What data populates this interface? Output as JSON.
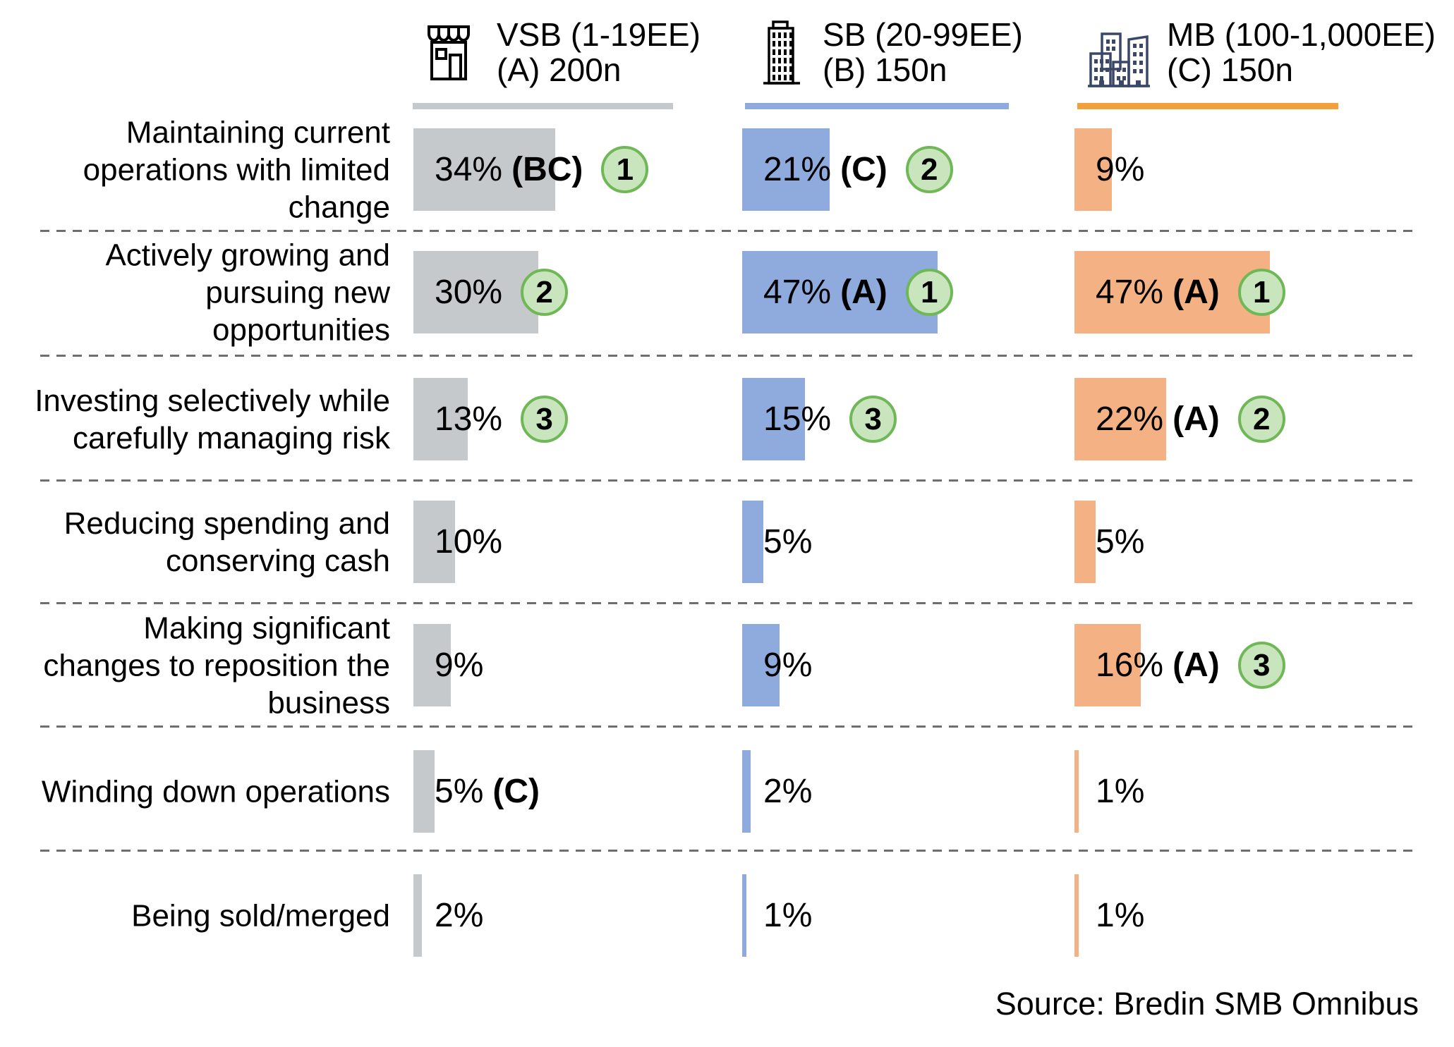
{
  "header": {
    "columns": [
      {
        "id": "A",
        "icon": "storefront-icon",
        "line1": "VSB (1-19EE)",
        "line2": "(A) 200n",
        "underline_color": "#C6C9CB",
        "bar_color": "#C6C9CB"
      },
      {
        "id": "B",
        "icon": "office-building-icon",
        "line1": "SB (20-99EE)",
        "line2": "(B) 150n",
        "underline_color": "#8FAADC",
        "bar_color": "#8FAADC"
      },
      {
        "id": "C",
        "icon": "city-buildings-icon",
        "line1": "MB (100-1,000EE)",
        "line2": "(C) 150n",
        "underline_color": "#F0A139",
        "bar_color": "#F4B183"
      }
    ]
  },
  "chart_data": {
    "type": "bar",
    "orientation": "horizontal",
    "value_unit": "percent",
    "series_names": [
      "VSB (1-19EE) (A) 200n",
      "SB (20-99EE) (B) 150n",
      "MB (100-1,000EE) (C) 150n"
    ],
    "categories": [
      "Maintaining current operations with limited change",
      "Actively growing and pursuing new opportunities",
      "Investing selectively while carefully managing risk",
      "Reducing spending and conserving cash",
      "Making significant changes to reposition the business",
      "Winding down operations",
      "Being sold/merged"
    ],
    "rows": [
      {
        "label_lines": [
          "Maintaining current",
          "operations with limited",
          "change"
        ],
        "values": [
          {
            "pct": 34,
            "label": "34%",
            "sig": "(BC)",
            "rank": "1"
          },
          {
            "pct": 21,
            "label": "21%",
            "sig": "(C)",
            "rank": "2"
          },
          {
            "pct": 9,
            "label": "9%",
            "sig": null,
            "rank": null
          }
        ]
      },
      {
        "label_lines": [
          "Actively growing and",
          "pursuing new",
          "opportunities"
        ],
        "values": [
          {
            "pct": 30,
            "label": "30%",
            "sig": null,
            "rank": "2"
          },
          {
            "pct": 47,
            "label": "47%",
            "sig": "(A)",
            "rank": "1"
          },
          {
            "pct": 47,
            "label": "47%",
            "sig": "(A)",
            "rank": "1"
          }
        ]
      },
      {
        "label_lines": [
          "Investing selectively while",
          "carefully managing risk"
        ],
        "values": [
          {
            "pct": 13,
            "label": "13%",
            "sig": null,
            "rank": "3"
          },
          {
            "pct": 15,
            "label": "15%",
            "sig": null,
            "rank": "3"
          },
          {
            "pct": 22,
            "label": "22%",
            "sig": "(A)",
            "rank": "2"
          }
        ]
      },
      {
        "label_lines": [
          "Reducing spending and",
          "conserving cash"
        ],
        "values": [
          {
            "pct": 10,
            "label": "10%",
            "sig": null,
            "rank": null
          },
          {
            "pct": 5,
            "label": "5%",
            "sig": null,
            "rank": null
          },
          {
            "pct": 5,
            "label": "5%",
            "sig": null,
            "rank": null
          }
        ]
      },
      {
        "label_lines": [
          "Making significant",
          "changes to reposition the",
          "business"
        ],
        "values": [
          {
            "pct": 9,
            "label": "9%",
            "sig": null,
            "rank": null
          },
          {
            "pct": 9,
            "label": "9%",
            "sig": null,
            "rank": null
          },
          {
            "pct": 16,
            "label": "16%",
            "sig": "(A)",
            "rank": "3"
          }
        ]
      },
      {
        "label_lines": [
          "Winding down operations"
        ],
        "values": [
          {
            "pct": 5,
            "label": "5%",
            "sig": "(C)",
            "rank": null
          },
          {
            "pct": 2,
            "label": "2%",
            "sig": null,
            "rank": null
          },
          {
            "pct": 1,
            "label": "1%",
            "sig": null,
            "rank": null
          }
        ]
      },
      {
        "label_lines": [
          "Being sold/merged"
        ],
        "values": [
          {
            "pct": 2,
            "label": "2%",
            "sig": null,
            "rank": null
          },
          {
            "pct": 1,
            "label": "1%",
            "sig": null,
            "rank": null
          },
          {
            "pct": 1,
            "label": "1%",
            "sig": null,
            "rank": null
          }
        ]
      }
    ],
    "source_note": "Source: Bredin SMB Omnibus"
  },
  "colors": {
    "rank_fill": "#C9E5BD",
    "rank_border": "#70B857",
    "separator": "#6E6E6E",
    "mb_icon_navy": "#3B4767"
  }
}
